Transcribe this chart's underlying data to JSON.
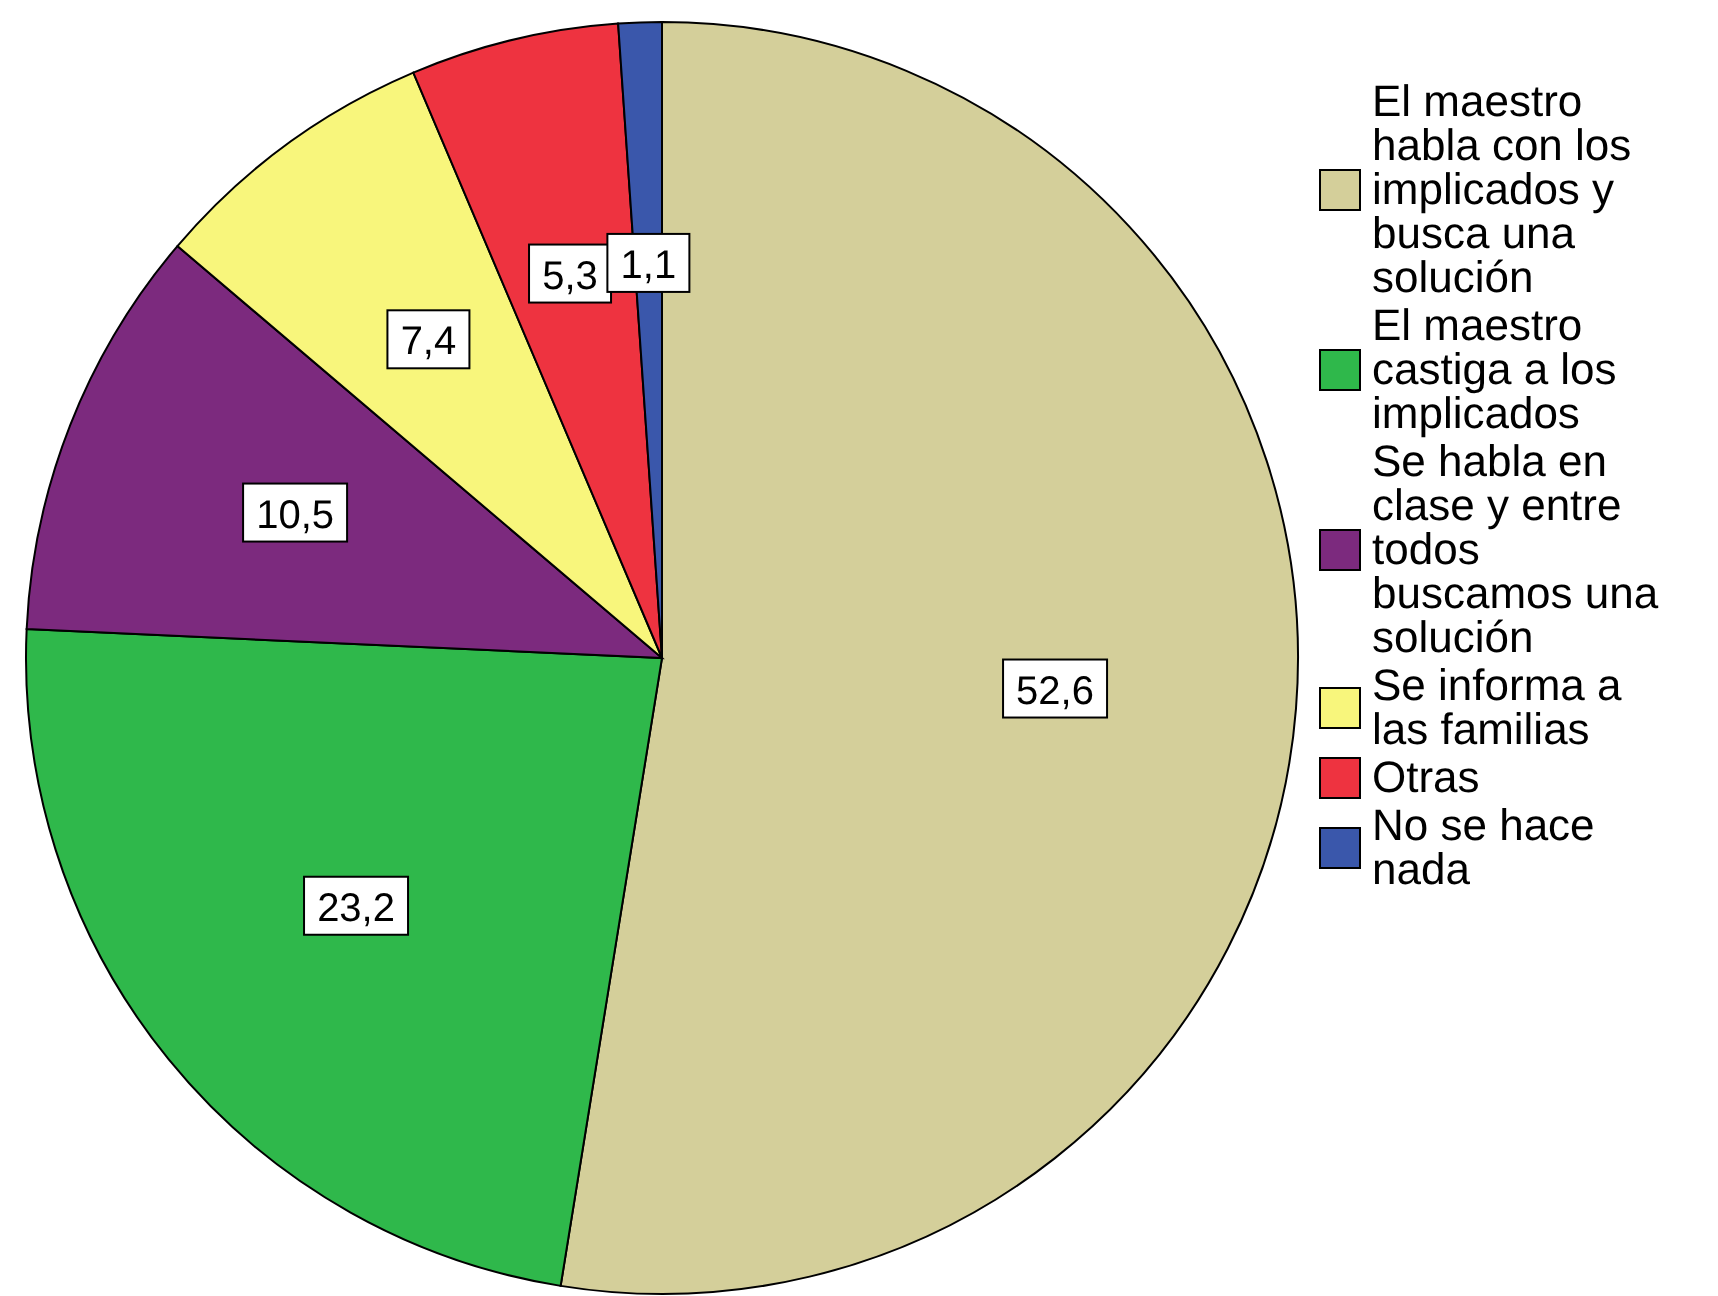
{
  "chart_data": {
    "type": "pie",
    "categories": [
      "El maestro habla con los implicados y busca una solución",
      "El maestro castiga a los implicados",
      "Se habla en clase y entre todos buscamos una solución",
      "Se informa a las familias",
      "Otras",
      "No se hace nada"
    ],
    "values": [
      52.6,
      23.2,
      10.5,
      7.4,
      5.3,
      1.1
    ],
    "colors": [
      "#d4cf9a",
      "#2fb84b",
      "#7c2a7e",
      "#f8f67c",
      "#ee3340",
      "#3a57ab"
    ],
    "value_labels": [
      "52,6",
      "23,2",
      "10,5",
      "7,4",
      "5,3",
      "1,1"
    ],
    "legend": "right"
  }
}
